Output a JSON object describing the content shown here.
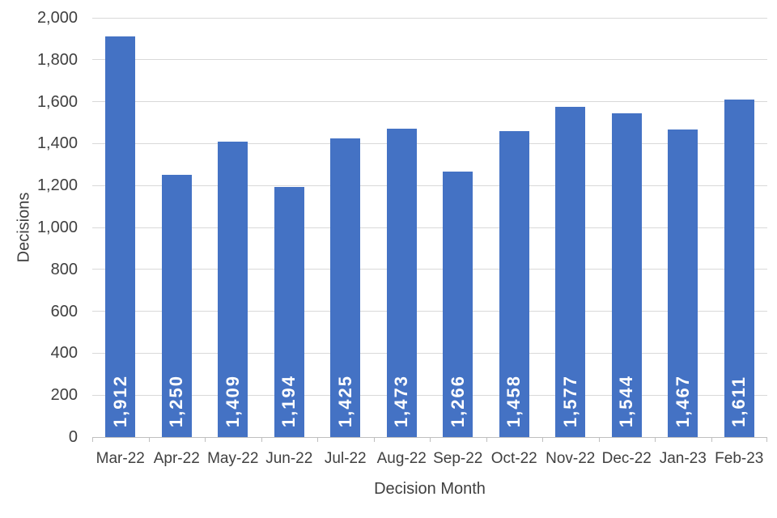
{
  "chart_data": {
    "type": "bar",
    "title": "",
    "categories": [
      "Mar-22",
      "Apr-22",
      "May-22",
      "Jun-22",
      "Jul-22",
      "Aug-22",
      "Sep-22",
      "Oct-22",
      "Nov-22",
      "Dec-22",
      "Jan-23",
      "Feb-23"
    ],
    "values": [
      1912,
      1250,
      1409,
      1194,
      1425,
      1473,
      1266,
      1458,
      1577,
      1544,
      1467,
      1611
    ],
    "value_labels": [
      "1,912",
      "1,250",
      "1,409",
      "1,194",
      "1,425",
      "1,473",
      "1,266",
      "1,458",
      "1,577",
      "1,544",
      "1,467",
      "1,611"
    ],
    "xlabel": "Decision Month",
    "ylabel": "Decisions",
    "ylim": [
      0,
      2000
    ],
    "ytick_step": 200,
    "ytick_labels": [
      "0",
      "200",
      "400",
      "600",
      "800",
      "1,000",
      "1,200",
      "1,400",
      "1,600",
      "1,800",
      "2,000"
    ],
    "grid": true,
    "legend": false,
    "colors": {
      "bar": "#4472C4",
      "bar_label": "#FFFFFF",
      "axis_text": "#404040",
      "gridline": "#D9D9D9",
      "axis_line": "#BFBFBF",
      "background": "#FFFFFF"
    }
  }
}
